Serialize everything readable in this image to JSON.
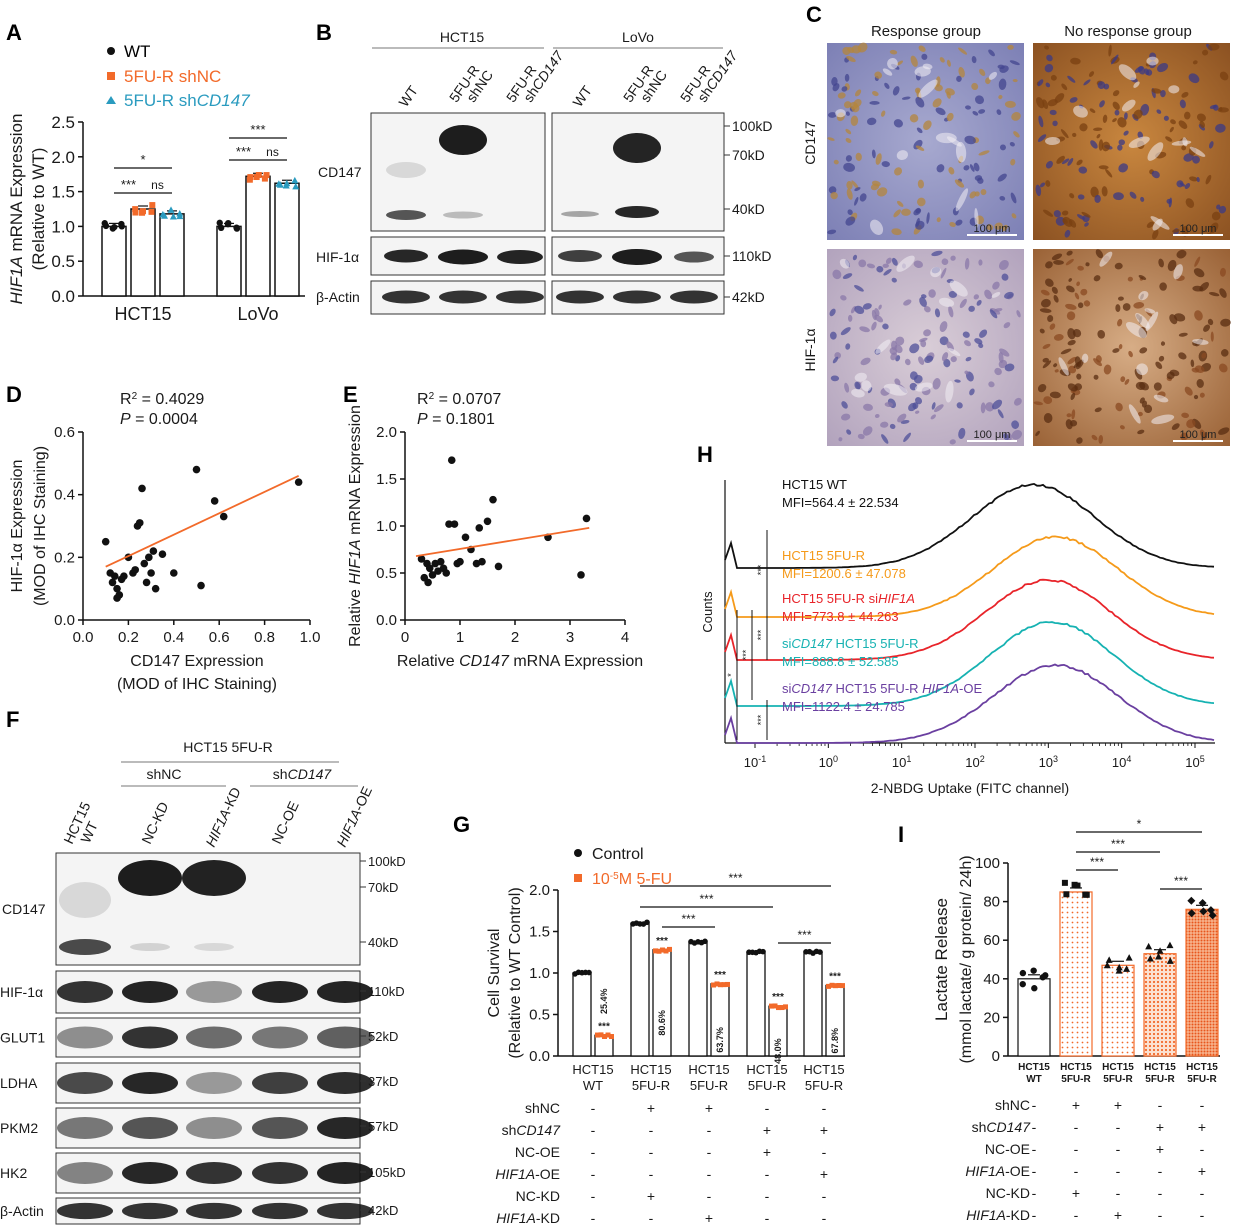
{
  "panels": {
    "A": "A",
    "B": "B",
    "C": "C",
    "D": "D",
    "E": "E",
    "F": "F",
    "G": "G",
    "H": "H",
    "I": "I"
  },
  "colors": {
    "wt": "#111111",
    "shnc": "#f26a2a",
    "shcd147": "#2a9bbf",
    "fit": "#f26a2a",
    "h_wt": "#111111",
    "h_5fur": "#f59a1a",
    "h_sihif": "#e8242a",
    "h_sicd147": "#16b2b2",
    "h_oe": "#6a3fa0"
  },
  "legend_A": {
    "wt": "WT",
    "shnc": "5FU-R shNC",
    "shcd147_prefix": "5FU-R sh",
    "shcd147_italic": "CD147"
  },
  "chart_data": [
    {
      "id": "A",
      "type": "bar",
      "categories": [
        "HCT15",
        "LoVo"
      ],
      "ylabel_italic": "HIF1A",
      "ylabel_rest": " mRNA Expression",
      "ylabel2": "(Relative to WT)",
      "ylim": [
        0,
        2.5
      ],
      "yticks": [
        "0.0",
        "0.5",
        "1.0",
        "1.5",
        "2.0",
        "2.5"
      ],
      "series": [
        {
          "name": "WT",
          "values": [
            1.0,
            1.0
          ]
        },
        {
          "name": "5FU-R shNC",
          "values": [
            1.25,
            1.72
          ]
        },
        {
          "name": "5FU-R shCD147",
          "values": [
            1.18,
            1.62
          ]
        }
      ],
      "significance": [
        "*",
        "***",
        "ns",
        "***",
        "***",
        "ns"
      ]
    },
    {
      "id": "D",
      "type": "scatter",
      "xlabel": "CD147 Expression",
      "xlabel2": "(MOD of IHC Staining)",
      "ylabel": "HIF-1α Expression",
      "ylabel2": "(MOD of IHC Staining)",
      "xlim": [
        0.0,
        1.0
      ],
      "ylim": [
        0.0,
        0.6
      ],
      "xticks": [
        "0.0",
        "0.2",
        "0.4",
        "0.6",
        "0.8",
        "1.0"
      ],
      "yticks": [
        "0.0",
        "0.2",
        "0.4",
        "0.6"
      ],
      "r2_label": "R",
      "r2_value": " = 0.4029",
      "p_label": "P",
      "p_value": " = 0.0004",
      "points": [
        [
          0.1,
          0.25
        ],
        [
          0.12,
          0.15
        ],
        [
          0.13,
          0.12
        ],
        [
          0.14,
          0.14
        ],
        [
          0.15,
          0.1
        ],
        [
          0.15,
          0.07
        ],
        [
          0.16,
          0.08
        ],
        [
          0.17,
          0.13
        ],
        [
          0.18,
          0.14
        ],
        [
          0.2,
          0.2
        ],
        [
          0.22,
          0.15
        ],
        [
          0.23,
          0.16
        ],
        [
          0.24,
          0.3
        ],
        [
          0.25,
          0.31
        ],
        [
          0.26,
          0.42
        ],
        [
          0.27,
          0.18
        ],
        [
          0.28,
          0.12
        ],
        [
          0.29,
          0.2
        ],
        [
          0.3,
          0.15
        ],
        [
          0.31,
          0.22
        ],
        [
          0.32,
          0.1
        ],
        [
          0.35,
          0.21
        ],
        [
          0.4,
          0.15
        ],
        [
          0.5,
          0.48
        ],
        [
          0.52,
          0.11
        ],
        [
          0.58,
          0.38
        ],
        [
          0.62,
          0.33
        ],
        [
          0.95,
          0.44
        ]
      ],
      "fit": [
        [
          0.1,
          0.17
        ],
        [
          0.95,
          0.46
        ]
      ]
    },
    {
      "id": "E",
      "type": "scatter",
      "xlabel_pre": "Relative ",
      "xlabel_italic": "CD147",
      "xlabel_post": " mRNA Expression",
      "ylabel_pre": "Relative ",
      "ylabel_italic": "HIF1A",
      "ylabel_post": " mRNA Expression",
      "xlim": [
        0,
        4
      ],
      "ylim": [
        0.0,
        2.0
      ],
      "xticks": [
        "0",
        "1",
        "2",
        "3",
        "4"
      ],
      "yticks": [
        "0.0",
        "0.5",
        "1.0",
        "1.5",
        "2.0"
      ],
      "r2_label": "R",
      "r2_value": " = 0.0707",
      "p_label": "P",
      "p_value": " = 0.1801",
      "points": [
        [
          0.3,
          0.65
        ],
        [
          0.35,
          0.45
        ],
        [
          0.4,
          0.6
        ],
        [
          0.42,
          0.4
        ],
        [
          0.45,
          0.55
        ],
        [
          0.5,
          0.48
        ],
        [
          0.55,
          0.6
        ],
        [
          0.6,
          0.52
        ],
        [
          0.65,
          0.62
        ],
        [
          0.7,
          0.55
        ],
        [
          0.75,
          0.5
        ],
        [
          0.8,
          1.02
        ],
        [
          0.85,
          1.7
        ],
        [
          0.9,
          1.02
        ],
        [
          0.95,
          0.6
        ],
        [
          1.0,
          0.62
        ],
        [
          1.1,
          0.88
        ],
        [
          1.2,
          0.75
        ],
        [
          1.3,
          0.6
        ],
        [
          1.35,
          0.98
        ],
        [
          1.4,
          0.62
        ],
        [
          1.5,
          1.05
        ],
        [
          1.6,
          1.28
        ],
        [
          1.7,
          0.57
        ],
        [
          2.6,
          0.88
        ],
        [
          3.2,
          0.48
        ],
        [
          3.3,
          1.08
        ]
      ],
      "fit": [
        [
          0.2,
          0.68
        ],
        [
          3.35,
          0.98
        ]
      ]
    },
    {
      "id": "G",
      "type": "bar",
      "categories": [
        "HCT15 WT",
        "HCT15 5FU-R",
        "HCT15 5FU-R",
        "HCT15 5FU-R",
        "HCT15 5FU-R"
      ],
      "ylabel": "Cell Survival",
      "ylabel2": "(Relative to WT Control)",
      "ylim": [
        0,
        2.0
      ],
      "yticks": [
        "0.0",
        "0.5",
        "1.0",
        "1.5",
        "2.0"
      ],
      "legend_control": "Control",
      "legend_treat": "5-FU",
      "series": [
        {
          "name": "Control",
          "values": [
            1.0,
            1.6,
            1.37,
            1.25,
            1.25
          ]
        },
        {
          "name": "5-FU",
          "values": [
            0.25,
            1.28,
            0.87,
            0.6,
            0.85
          ]
        }
      ],
      "percent_labels": [
        "25.4%",
        "80.6%",
        "63.7%",
        "48.0%",
        "67.8%"
      ],
      "stars": "***"
    },
    {
      "id": "I",
      "type": "bar",
      "categories": [
        "HCT15 WT",
        "HCT15 5FU-R",
        "HCT15 5FU-R",
        "HCT15 5FU-R",
        "HCT15 5FU-R"
      ],
      "ylabel": "Lactate Release",
      "ylabel2": "(mmol lactate/ g protein/ 24h)",
      "ylim": [
        0,
        100
      ],
      "yticks": [
        "0",
        "20",
        "40",
        "60",
        "80",
        "100"
      ],
      "values": [
        40,
        85,
        47,
        53,
        76
      ],
      "stars": [
        "*",
        "***",
        "***",
        "***"
      ]
    },
    {
      "id": "H",
      "type": "line",
      "xlabel": "2-NBDG Uptake (FITC channel)",
      "ylabel": "Counts",
      "xticks": [
        "10",
        "10",
        "10",
        "10",
        "10",
        "10",
        "10"
      ],
      "xtick_exps": [
        "-1",
        "0",
        "1",
        "2",
        "3",
        "4",
        "5"
      ],
      "stars": [
        "***",
        "***",
        "***",
        "*",
        "***"
      ],
      "series": [
        {
          "name_pre": "HCT15 WT",
          "mfi": "MFI=564.4 ± 22.534",
          "peak_log": 2.8
        },
        {
          "name_pre": "HCT15 5FU-R",
          "mfi": "MFI=1200.6 ± 47.078",
          "peak_log": 3.1
        },
        {
          "name_pre": "HCT15 5FU-R si",
          "name_italic": "HIF1A",
          "mfi": "MFI=773.8 ± 44.263",
          "peak_log": 3.0
        },
        {
          "name_pre": "si",
          "name_italic": "CD147",
          "name_post": " HCT15 5FU-R",
          "mfi": "MFI=888.8 ± 52.585",
          "peak_log": 3.05
        },
        {
          "name_pre": "si",
          "name_italic": "CD147",
          "name_post": " HCT15 5FU-R ",
          "name_italic2": "HIF1A",
          "name_post2": "-OE",
          "mfi": "MFI=1122.4 ± 24.785",
          "peak_log": 3.1
        }
      ]
    }
  ],
  "B": {
    "groups": [
      "HCT15",
      "LoVo"
    ],
    "lanes": [
      "WT",
      "5FU-R",
      "shNC",
      "5FU-R",
      "sh",
      "CD147"
    ],
    "lane_wt": "WT",
    "lane_shnc_1": "5FU-R",
    "lane_shnc_2": "shNC",
    "lane_shcd_1": "5FU-R",
    "lane_shcd_2a": "sh",
    "lane_shcd_2b": "CD147",
    "rows": [
      "CD147",
      "HIF-1α",
      "β-Actin"
    ],
    "markers": [
      "100kD",
      "70kD",
      "40kD",
      "110kD",
      "42kD"
    ]
  },
  "C": {
    "cols": [
      "Response group",
      "No response group"
    ],
    "rows": [
      "CD147",
      "HIF-1α"
    ],
    "scale": "100 μm"
  },
  "F": {
    "title": "HCT15 5FU-R",
    "sub1": "shNC",
    "sub2_pre": "sh",
    "sub2_italic": "CD147",
    "lanes": [
      "HCT15",
      "WT",
      "NC-KD",
      "HIF1A-KD",
      "NC-OE",
      "HIF1A-OE"
    ],
    "lane_hif_kd_italic": "HIF1A",
    "lane_hif_kd_post": "-KD",
    "lane_hif_oe_italic": "HIF1A",
    "lane_hif_oe_post": "-OE",
    "rows": [
      "CD147",
      "HIF-1α",
      "GLUT1",
      "LDHA",
      "PKM2",
      "HK2",
      "β-Actin"
    ],
    "markers": [
      "100kD",
      "70kD",
      "40kD",
      "110kD",
      "52kD",
      "37kD",
      "57kD",
      "105kD",
      "42kD"
    ]
  },
  "matrix_G": {
    "rows": [
      "shNC",
      "sh",
      "NC-OE",
      "",
      "NC-KD",
      ""
    ],
    "row_shcd_italic": "CD147",
    "row_hifoe_italic": "HIF1A",
    "row_hifoe_post": "-OE",
    "row_hifkd_italic": "HIF1A",
    "row_hifkd_post": "-KD",
    "values": [
      [
        "-",
        "+",
        "+",
        "-",
        "-"
      ],
      [
        "-",
        "-",
        "-",
        "+",
        "+"
      ],
      [
        "-",
        "-",
        "-",
        "+",
        "-"
      ],
      [
        "-",
        "-",
        "-",
        "-",
        "+"
      ],
      [
        "-",
        "+",
        "-",
        "-",
        "-"
      ],
      [
        "-",
        "-",
        "+",
        "-",
        "-"
      ]
    ]
  },
  "matrix_I": {
    "values": [
      [
        "-",
        "+",
        "+",
        "-",
        "-"
      ],
      [
        "-",
        "-",
        "-",
        "+",
        "+"
      ],
      [
        "-",
        "-",
        "-",
        "+",
        "-"
      ],
      [
        "-",
        "-",
        "-",
        "-",
        "+"
      ],
      [
        "-",
        "+",
        "-",
        "-",
        "-"
      ],
      [
        "-",
        "-",
        "+",
        "-",
        "-"
      ]
    ]
  }
}
